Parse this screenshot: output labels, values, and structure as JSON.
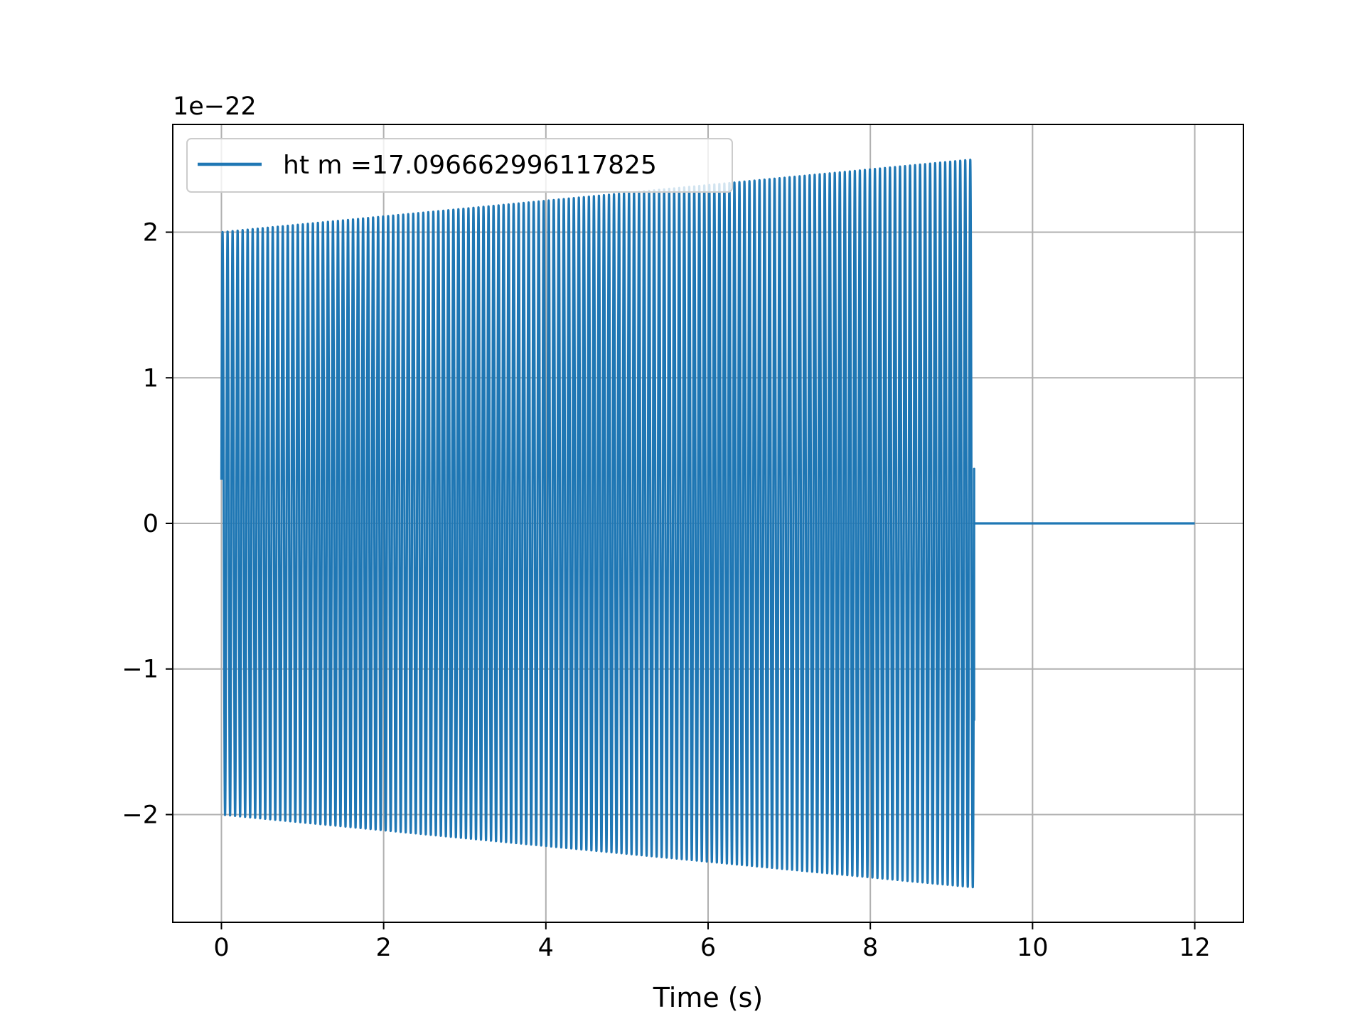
{
  "chart_data": {
    "type": "line",
    "xlabel": "Time (s)",
    "ylabel": "",
    "y_offset_label": "1e−22",
    "xlim": [
      -0.6,
      12.6
    ],
    "ylim": [
      -2.74,
      2.74
    ],
    "x_ticks": [
      0,
      2,
      4,
      6,
      8,
      10,
      12
    ],
    "x_tick_labels": [
      "0",
      "2",
      "4",
      "6",
      "8",
      "10",
      "12"
    ],
    "y_ticks": [
      -2,
      -1,
      0,
      1,
      2
    ],
    "y_tick_labels": [
      "−2",
      "−1",
      "0",
      "1",
      "2"
    ],
    "grid": true,
    "legend_position": "top-left",
    "series": [
      {
        "name": "ht m =17.096662996117825",
        "color": "#1f77b4",
        "description_values": {
          "signal_start_s": 0.0,
          "signal_end_s": 9.28,
          "record_end_s": 12.0,
          "start_amplitude": 2.0,
          "end_amplitude": 2.5,
          "value_at_start": 0.3,
          "value_at_cutoff": -1.35,
          "value_after_cutoff": 0.0
        }
      }
    ]
  }
}
